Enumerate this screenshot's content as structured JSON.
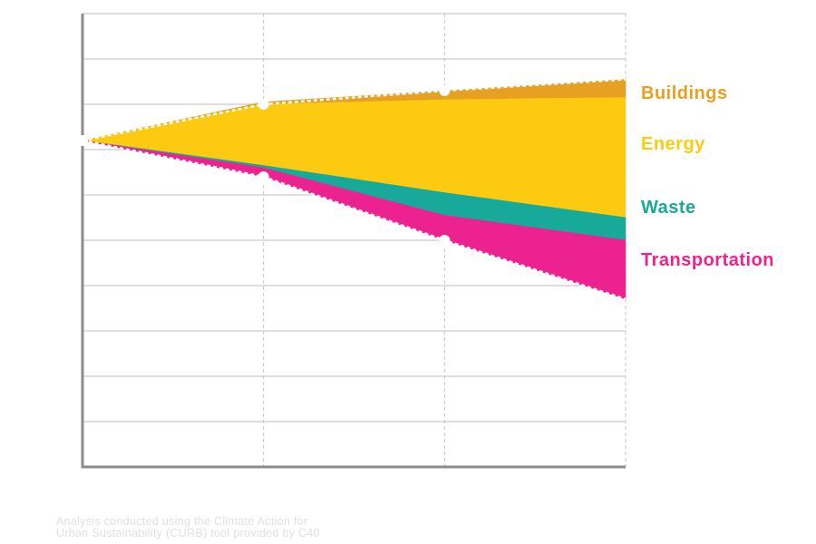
{
  "chart_data": {
    "type": "area",
    "title": "",
    "xlabel": "",
    "ylabel": "",
    "x": [
      0,
      1,
      2,
      3
    ],
    "ylim": [
      -10,
      0
    ],
    "baseline": -2.8,
    "grid": true,
    "series": [
      {
        "name": "Buildings",
        "color": "#E8A023",
        "lower": [
          -2.8,
          -2.0,
          -1.9,
          -1.85
        ],
        "upper": [
          -2.8,
          -1.95,
          -1.7,
          -1.45
        ]
      },
      {
        "name": "Energy",
        "color": "#FCCB11",
        "lower": [
          -2.8,
          -3.35,
          -3.95,
          -4.5
        ],
        "upper": [
          -2.8,
          -2.0,
          -1.9,
          -1.85
        ]
      },
      {
        "name": "Waste",
        "color": "#17A99A",
        "lower": [
          -2.8,
          -3.4,
          -4.45,
          -5.0
        ],
        "upper": [
          -2.8,
          -3.35,
          -3.95,
          -4.5
        ]
      },
      {
        "name": "Transportation",
        "color": "#EC2290",
        "lower": [
          -2.8,
          -3.6,
          -5.0,
          -6.3
        ],
        "upper": [
          -2.8,
          -3.4,
          -4.45,
          -5.0
        ]
      }
    ],
    "upper_target": [
      -2.8,
      -2.0,
      -1.7,
      -1.45
    ],
    "lower_target": [
      -2.8,
      -3.6,
      -5.0,
      -6.3
    ]
  },
  "labels": {
    "buildings": "Buildings",
    "energy": "Energy",
    "waste": "Waste",
    "transportation": "Transportation"
  },
  "credit": {
    "line1": "Analysis conducted using the Climate Action for",
    "line2": "Urban Sustainability (CURB) tool provided by C40"
  }
}
